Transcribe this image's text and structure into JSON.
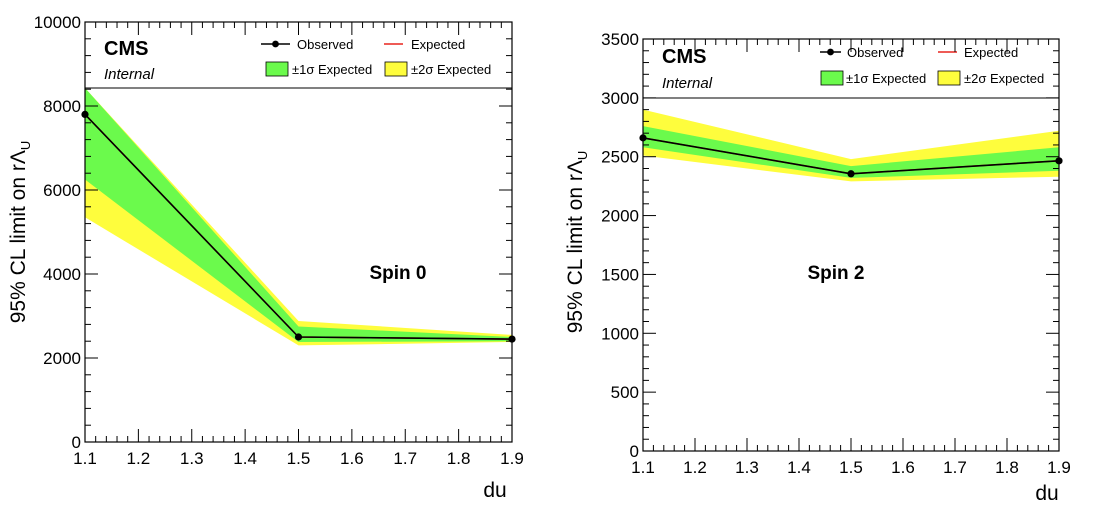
{
  "chart_data": [
    {
      "type": "line",
      "label": "Spin 0",
      "experiment": "CMS",
      "status": "Internal",
      "xlabel": "du",
      "ylabel": "95% CL limit on rΛ",
      "ylabel_sub": "U",
      "xlim": [
        1.1,
        1.9
      ],
      "ylim": [
        0,
        10000
      ],
      "x_ticks": [
        "1.1",
        "1.2",
        "1.3",
        "1.4",
        "1.5",
        "1.6",
        "1.7",
        "1.8",
        "1.9"
      ],
      "y_ticks": [
        "0",
        "2000",
        "4000",
        "6000",
        "8000",
        "10000"
      ],
      "x": [
        1.1,
        1.5,
        1.9
      ],
      "observed": [
        7800,
        2500,
        2450
      ],
      "expected": [
        7800,
        2500,
        2450
      ],
      "band_1sigma": {
        "low": [
          6250,
          2380,
          2400
        ],
        "high": [
          8700,
          2750,
          2500
        ]
      },
      "band_2sigma": {
        "low": [
          5350,
          2300,
          2380
        ],
        "high": [
          8700,
          2880,
          2550
        ]
      }
    },
    {
      "type": "line",
      "label": "Spin 2",
      "experiment": "CMS",
      "status": "Internal",
      "xlabel": "du",
      "ylabel": "95% CL limit on rΛ",
      "ylabel_sub": "U",
      "xlim": [
        1.1,
        1.9
      ],
      "ylim": [
        0,
        3500
      ],
      "x_ticks": [
        "1.1",
        "1.2",
        "1.3",
        "1.4",
        "1.5",
        "1.6",
        "1.7",
        "1.8",
        "1.9"
      ],
      "y_ticks": [
        "0",
        "500",
        "1000",
        "1500",
        "2000",
        "2500",
        "3000",
        "3500"
      ],
      "x": [
        1.1,
        1.5,
        1.9
      ],
      "observed": [
        2660,
        2355,
        2465
      ],
      "expected": [
        2660,
        2355,
        2465
      ],
      "band_1sigma": {
        "low": [
          2580,
          2320,
          2380
        ],
        "high": [
          2760,
          2420,
          2580
        ]
      },
      "band_2sigma": {
        "low": [
          2510,
          2290,
          2330
        ],
        "high": [
          2900,
          2480,
          2720
        ]
      }
    }
  ],
  "legend": {
    "observed": "Observed",
    "expected": "Expected",
    "sigma1": "±1σ Expected",
    "sigma2": "±2σ Expected"
  },
  "colors": {
    "observed": "#000000",
    "expected": "#e8251f",
    "sigma1": "#6bfa4c",
    "sigma2": "#fefd3d",
    "frame": "#000000"
  }
}
